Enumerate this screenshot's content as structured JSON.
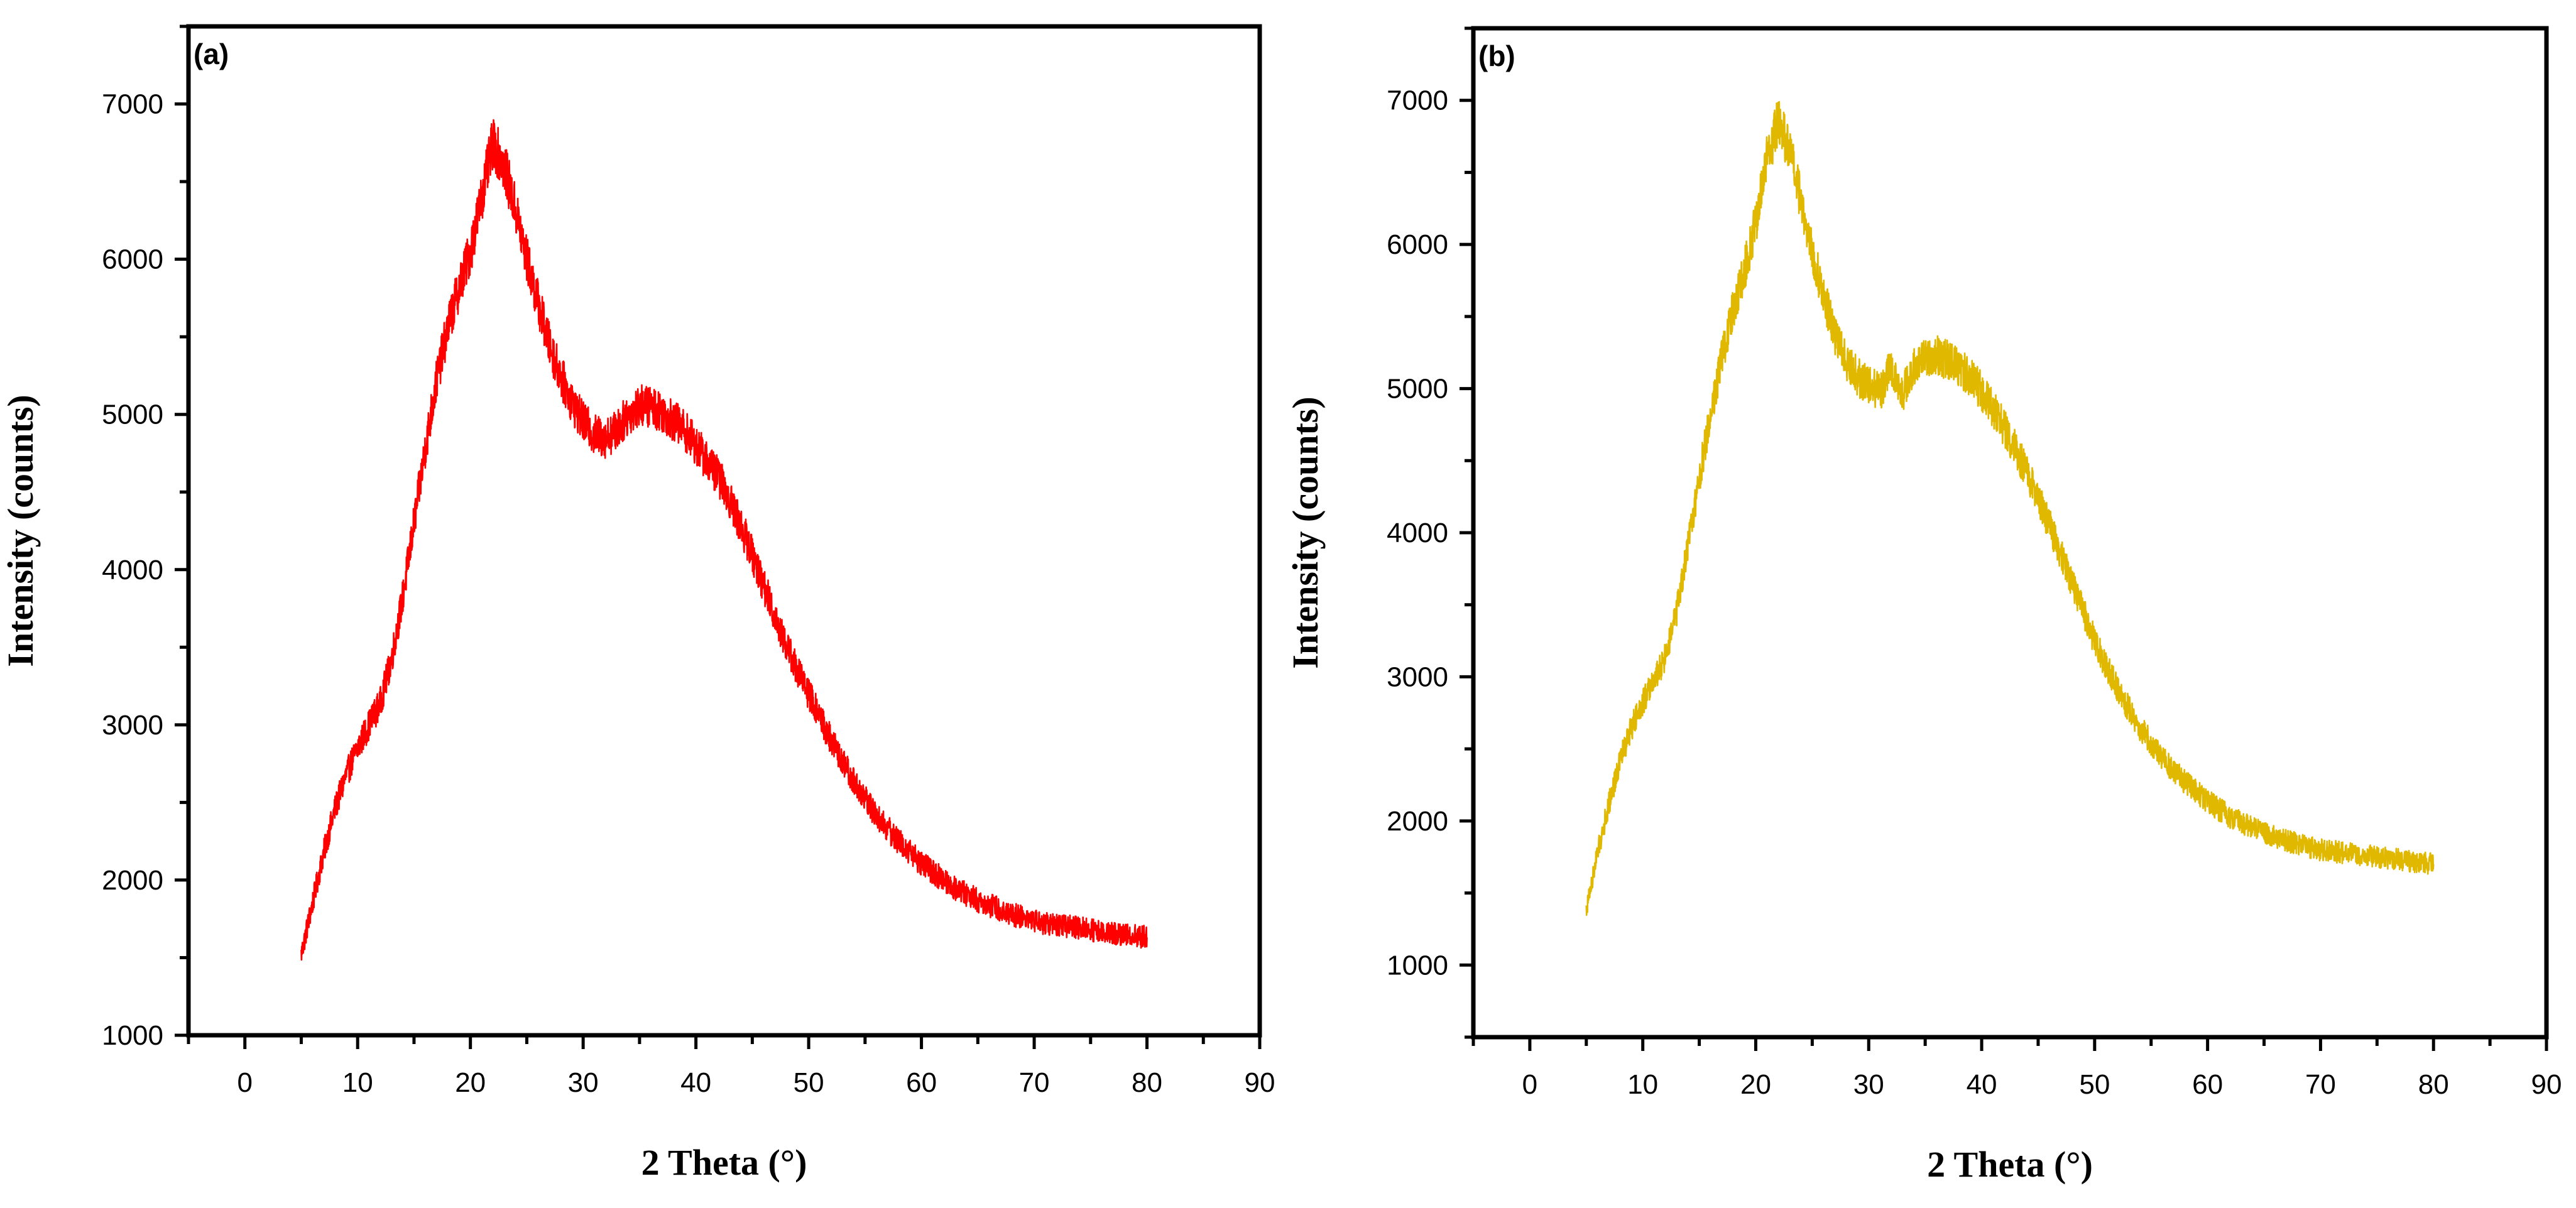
{
  "chart_data": [
    {
      "type": "line",
      "panel_label": "(a)",
      "xlabel": "2 Theta (°)",
      "ylabel": "Intensity (counts)",
      "xlim": [
        -5,
        90
      ],
      "ylim": [
        1000,
        7500
      ],
      "xticks": [
        0,
        10,
        20,
        30,
        40,
        50,
        60,
        70,
        80,
        90
      ],
      "yticks": [
        1000,
        2000,
        3000,
        4000,
        5000,
        6000,
        7000
      ],
      "line_color": "#ff0000",
      "series": [
        {
          "name": "(a)",
          "points": [
            [
              5,
              1520
            ],
            [
              6,
              1850
            ],
            [
              7,
              2180
            ],
            [
              8,
              2460
            ],
            [
              9,
              2680
            ],
            [
              10,
              2850
            ],
            [
              11,
              3000
            ],
            [
              12,
              3140
            ],
            [
              13,
              3420
            ],
            [
              14,
              3820
            ],
            [
              15,
              4300
            ],
            [
              16,
              4780
            ],
            [
              17,
              5220
            ],
            [
              18,
              5560
            ],
            [
              19,
              5820
            ],
            [
              20,
              6050
            ],
            [
              21,
              6400
            ],
            [
              22,
              6750
            ],
            [
              23,
              6600
            ],
            [
              24,
              6320
            ],
            [
              25,
              6000
            ],
            [
              26,
              5720
            ],
            [
              27,
              5450
            ],
            [
              28,
              5250
            ],
            [
              29,
              5080
            ],
            [
              30,
              4950
            ],
            [
              31,
              4870
            ],
            [
              32,
              4850
            ],
            [
              33,
              4900
            ],
            [
              34,
              5000
            ],
            [
              35,
              5060
            ],
            [
              36,
              5050
            ],
            [
              37,
              5020
            ],
            [
              38,
              4960
            ],
            [
              39,
              4900
            ],
            [
              40,
              4800
            ],
            [
              41,
              4700
            ],
            [
              42,
              4600
            ],
            [
              43,
              4450
            ],
            [
              44,
              4280
            ],
            [
              45,
              4100
            ],
            [
              46,
              3900
            ],
            [
              47,
              3700
            ],
            [
              48,
              3520
            ],
            [
              49,
              3350
            ],
            [
              50,
              3200
            ],
            [
              51,
              3050
            ],
            [
              52,
              2900
            ],
            [
              53,
              2760
            ],
            [
              54,
              2640
            ],
            [
              55,
              2520
            ],
            [
              56,
              2420
            ],
            [
              57,
              2330
            ],
            [
              58,
              2250
            ],
            [
              59,
              2180
            ],
            [
              60,
              2110
            ],
            [
              61,
              2050
            ],
            [
              62,
              2000
            ],
            [
              63,
              1950
            ],
            [
              64,
              1910
            ],
            [
              65,
              1870
            ],
            [
              66,
              1840
            ],
            [
              67,
              1810
            ],
            [
              68,
              1780
            ],
            [
              69,
              1760
            ],
            [
              70,
              1740
            ],
            [
              71,
              1720
            ],
            [
              72,
              1710
            ],
            [
              73,
              1700
            ],
            [
              74,
              1690
            ],
            [
              75,
              1680
            ],
            [
              76,
              1670
            ],
            [
              77,
              1660
            ],
            [
              78,
              1650
            ],
            [
              79,
              1640
            ],
            [
              80,
              1630
            ]
          ]
        }
      ]
    },
    {
      "type": "line",
      "panel_label": "(b)",
      "xlabel": "2 Theta (°)",
      "ylabel": "Intensity (counts)",
      "xlim": [
        -5,
        90
      ],
      "ylim": [
        500,
        7500
      ],
      "xticks": [
        0,
        10,
        20,
        30,
        40,
        50,
        60,
        70,
        80,
        90
      ],
      "yticks": [
        1000,
        2000,
        3000,
        4000,
        5000,
        6000,
        7000
      ],
      "line_color": "#e0b800",
      "series": [
        {
          "name": "(b)",
          "points": [
            [
              5,
              1380
            ],
            [
              6,
              1780
            ],
            [
              7,
              2120
            ],
            [
              8,
              2420
            ],
            [
              9,
              2650
            ],
            [
              10,
              2830
            ],
            [
              11,
              2980
            ],
            [
              12,
              3130
            ],
            [
              13,
              3450
            ],
            [
              14,
              3900
            ],
            [
              15,
              4380
            ],
            [
              16,
              4820
            ],
            [
              17,
              5220
            ],
            [
              18,
              5550
            ],
            [
              19,
              5820
            ],
            [
              20,
              6150
            ],
            [
              21,
              6600
            ],
            [
              22,
              6850
            ],
            [
              23,
              6650
            ],
            [
              24,
              6300
            ],
            [
              25,
              5950
            ],
            [
              26,
              5650
            ],
            [
              27,
              5380
            ],
            [
              28,
              5200
            ],
            [
              29,
              5080
            ],
            [
              30,
              5020
            ],
            [
              31,
              4980
            ],
            [
              32,
              5150
            ],
            [
              33,
              4960
            ],
            [
              34,
              5150
            ],
            [
              35,
              5220
            ],
            [
              36,
              5230
            ],
            [
              37,
              5200
            ],
            [
              38,
              5150
            ],
            [
              39,
              5080
            ],
            [
              40,
              4980
            ],
            [
              41,
              4860
            ],
            [
              42,
              4730
            ],
            [
              43,
              4580
            ],
            [
              44,
              4420
            ],
            [
              45,
              4250
            ],
            [
              46,
              4050
            ],
            [
              47,
              3850
            ],
            [
              48,
              3650
            ],
            [
              49,
              3450
            ],
            [
              50,
              3250
            ],
            [
              51,
              3080
            ],
            [
              52,
              2920
            ],
            [
              53,
              2780
            ],
            [
              54,
              2650
            ],
            [
              55,
              2540
            ],
            [
              56,
              2440
            ],
            [
              57,
              2350
            ],
            [
              58,
              2270
            ],
            [
              59,
              2200
            ],
            [
              60,
              2140
            ],
            [
              61,
              2080
            ],
            [
              62,
              2030
            ],
            [
              63,
              1990
            ],
            [
              64,
              1950
            ],
            [
              65,
              1920
            ],
            [
              66,
              1890
            ],
            [
              67,
              1860
            ],
            [
              68,
              1840
            ],
            [
              69,
              1820
            ],
            [
              70,
              1800
            ],
            [
              71,
              1790
            ],
            [
              72,
              1780
            ],
            [
              73,
              1770
            ],
            [
              74,
              1760
            ],
            [
              75,
              1750
            ],
            [
              76,
              1740
            ],
            [
              77,
              1730
            ],
            [
              78,
              1720
            ],
            [
              79,
              1710
            ],
            [
              80,
              1700
            ]
          ]
        }
      ]
    }
  ]
}
